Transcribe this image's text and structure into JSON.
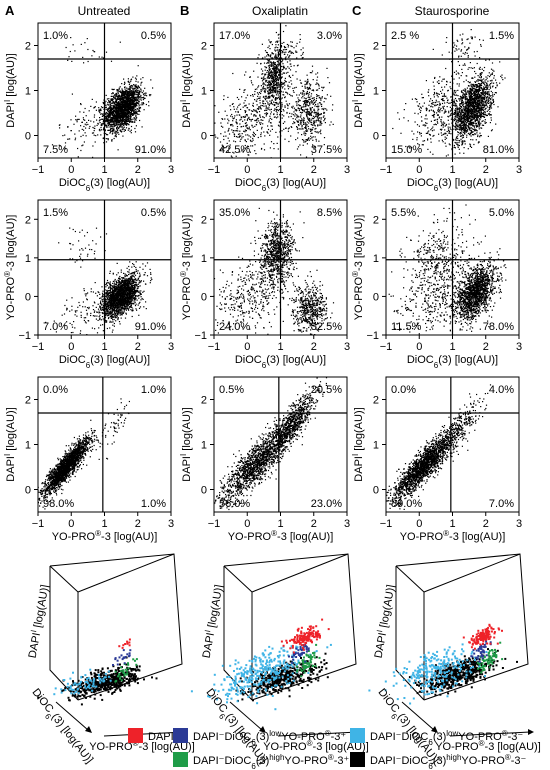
{
  "panels": [
    {
      "label": "A",
      "title": "Untreated"
    },
    {
      "label": "B",
      "title": "Oxaliplatin"
    },
    {
      "label": "C",
      "title": "Staurosporine"
    }
  ],
  "axis_texts": {
    "dapi": "DAPI [log(AU)]",
    "dioc": "DiOC6(3) [log(AU)]",
    "yopro": "YO-PRO®-3 [log(AU)]"
  },
  "colors": {
    "dapi_pos": "#ee2229",
    "low_yopro_pos": "#2b3a96",
    "low_yopro_neg": "#3fb4e6",
    "high_yopro_pos": "#1f9c48",
    "high_yopro_neg": "#000000"
  },
  "legend": [
    {
      "key": "dapi_pos",
      "label": "DAPI⁺"
    },
    {
      "key": "low_yopro_pos",
      "label": "DAPI⁻DiOC6(3)lowYO-PRO®-3⁺"
    },
    {
      "key": "low_yopro_neg",
      "label": "DAPI⁻DiOC6(3)lowYO-PRO®-3⁻"
    },
    {
      "key": "high_yopro_pos",
      "label": "DAPI⁻DiOC6(3)highYO-PRO®-3⁺"
    },
    {
      "key": "high_yopro_neg",
      "label": "DAPI⁻DiOC6(3)highYO-PRO®-3⁻"
    }
  ],
  "chart_data": [
    {
      "type": "scatter",
      "panel": "A",
      "condition": "Untreated",
      "xlabel": "DiOC6(3) [log(AU)]",
      "ylabel": "DAPI [log(AU)]",
      "xlim": [
        -1,
        3
      ],
      "ylim": [
        -0.5,
        2.5
      ],
      "x_ticks": [
        -1,
        0,
        1,
        2,
        3
      ],
      "y_ticks": [
        0,
        1,
        2
      ],
      "gate": {
        "x": 1.0,
        "y": 1.7
      },
      "quadrants": {
        "top_left": "1.0%",
        "top_right": "0.5%",
        "bottom_left": "7.5%",
        "bottom_right": "91.0%"
      }
    },
    {
      "type": "scatter",
      "panel": "B",
      "condition": "Oxaliplatin",
      "xlabel": "DiOC6(3) [log(AU)]",
      "ylabel": "DAPI [log(AU)]",
      "xlim": [
        -1,
        3
      ],
      "ylim": [
        -0.5,
        2.5
      ],
      "x_ticks": [
        -1,
        0,
        1,
        2,
        3
      ],
      "y_ticks": [
        0,
        1,
        2
      ],
      "gate": {
        "x": 1.0,
        "y": 1.7
      },
      "quadrants": {
        "top_left": "17.0%",
        "top_right": "3.0%",
        "bottom_left": "42.5%",
        "bottom_right": "37.5%"
      }
    },
    {
      "type": "scatter",
      "panel": "C",
      "condition": "Staurosporine",
      "xlabel": "DiOC6(3) [log(AU)]",
      "ylabel": "DAPI [log(AU)]",
      "xlim": [
        -1,
        3
      ],
      "ylim": [
        -0.5,
        2.5
      ],
      "x_ticks": [
        -1,
        0,
        1,
        2,
        3
      ],
      "y_ticks": [
        0,
        1,
        2
      ],
      "gate": {
        "x": 1.0,
        "y": 1.7
      },
      "quadrants": {
        "top_left": "2.5 %",
        "top_right": "1.5%",
        "bottom_left": "15.0%",
        "bottom_right": "81.0%"
      }
    },
    {
      "type": "scatter",
      "panel": "A",
      "condition": "Untreated",
      "xlabel": "DiOC6(3) [log(AU)]",
      "ylabel": "YO-PRO®-3 [log(AU)]",
      "xlim": [
        -1,
        3
      ],
      "ylim": [
        -1,
        2.5
      ],
      "x_ticks": [
        -1,
        0,
        1,
        2,
        3
      ],
      "y_ticks": [
        -1,
        0,
        1,
        2
      ],
      "gate": {
        "x": 1.0,
        "y": 0.95
      },
      "quadrants": {
        "top_left": "1.5%",
        "top_right": "0.5%",
        "bottom_left": "7.0%",
        "bottom_right": "91.0%"
      }
    },
    {
      "type": "scatter",
      "panel": "B",
      "condition": "Oxaliplatin",
      "xlabel": "DiOC6(3) [log(AU)]",
      "ylabel": "YO-PRO®-3 [log(AU)]",
      "xlim": [
        -1,
        3
      ],
      "ylim": [
        -1,
        2.5
      ],
      "x_ticks": [
        -1,
        0,
        1,
        2,
        3
      ],
      "y_ticks": [
        -1,
        0,
        1,
        2
      ],
      "gate": {
        "x": 1.0,
        "y": 0.95
      },
      "quadrants": {
        "top_left": "35.0%",
        "top_right": "8.5%",
        "bottom_left": "24.0%",
        "bottom_right": "32.5%"
      }
    },
    {
      "type": "scatter",
      "panel": "C",
      "condition": "Staurosporine",
      "xlabel": "DiOC6(3) [log(AU)]",
      "ylabel": "YO-PRO®-3 [log(AU)]",
      "xlim": [
        -1,
        3
      ],
      "ylim": [
        -1,
        2.5
      ],
      "x_ticks": [
        -1,
        0,
        1,
        2,
        3
      ],
      "y_ticks": [
        -1,
        0,
        1,
        2
      ],
      "gate": {
        "x": 1.0,
        "y": 0.95
      },
      "quadrants": {
        "top_left": "5.5%",
        "top_right": "5.0%",
        "bottom_left": "11.5%",
        "bottom_right": "78.0%"
      }
    },
    {
      "type": "scatter",
      "panel": "A",
      "condition": "Untreated",
      "xlabel": "YO-PRO®-3 [log(AU)]",
      "ylabel": "DAPI [log(AU)]",
      "xlim": [
        -1,
        3
      ],
      "ylim": [
        -0.5,
        2.5
      ],
      "x_ticks": [
        -1,
        0,
        1,
        2,
        3
      ],
      "y_ticks": [
        0,
        1,
        2
      ],
      "gate": {
        "x": 0.95,
        "y": 1.7
      },
      "quadrants": {
        "top_left": "0.0%",
        "top_right": "1.0%",
        "bottom_left": "98.0%",
        "bottom_right": "1.0%"
      }
    },
    {
      "type": "scatter",
      "panel": "B",
      "condition": "Oxaliplatin",
      "xlabel": "YO-PRO®-3 [log(AU)]",
      "ylabel": "DAPI [log(AU)]",
      "xlim": [
        -1,
        3
      ],
      "ylim": [
        -0.5,
        2.5
      ],
      "x_ticks": [
        -1,
        0,
        1,
        2,
        3
      ],
      "y_ticks": [
        0,
        1,
        2
      ],
      "gate": {
        "x": 0.95,
        "y": 1.7
      },
      "quadrants": {
        "top_left": "0.5%",
        "top_right": "20.5%",
        "bottom_left": "56.0%",
        "bottom_right": "23.0%"
      }
    },
    {
      "type": "scatter",
      "panel": "C",
      "condition": "Staurosporine",
      "xlabel": "YO-PRO®-3 [log(AU)]",
      "ylabel": "DAPI [log(AU)]",
      "xlim": [
        -1,
        3
      ],
      "ylim": [
        -0.5,
        2.5
      ],
      "x_ticks": [
        -1,
        0,
        1,
        2,
        3
      ],
      "y_ticks": [
        0,
        1,
        2
      ],
      "gate": {
        "x": 0.95,
        "y": 1.7
      },
      "quadrants": {
        "top_left": "0.0%",
        "top_right": "4.0%",
        "bottom_left": "89.0%",
        "bottom_right": "7.0%"
      }
    },
    {
      "type": "scatter",
      "panel": "A",
      "condition": "Untreated",
      "view": "3d",
      "axes": [
        "DAPI [log(AU)]",
        "DiOC6(3) [log(AU)]",
        "YO-PRO®-3 [log(AU)]"
      ]
    },
    {
      "type": "scatter",
      "panel": "B",
      "condition": "Oxaliplatin",
      "view": "3d",
      "axes": [
        "DAPI [log(AU)]",
        "DiOC6(3) [log(AU)]",
        "YO-PRO®-3 [log(AU)]"
      ]
    },
    {
      "type": "scatter",
      "panel": "C",
      "condition": "Staurosporine",
      "view": "3d",
      "axes": [
        "DAPI [log(AU)]",
        "DiOC6(3) [log(AU)]",
        "YO-PRO®-3 [log(AU)]"
      ]
    }
  ]
}
